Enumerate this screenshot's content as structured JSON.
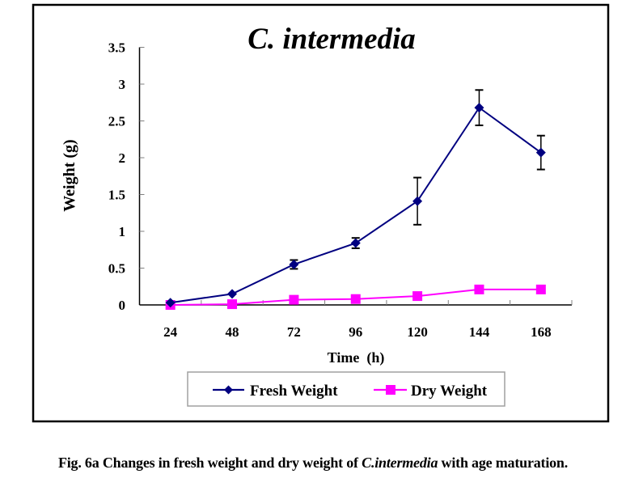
{
  "chart_data": {
    "type": "line",
    "title": "C. intermedia",
    "xlabel": "Time  (h)",
    "ylabel": "Weight (g)",
    "categories": [
      "24",
      "48",
      "72",
      "96",
      "120",
      "144",
      "168"
    ],
    "ylim": [
      0,
      3.5
    ],
    "yticks": [
      "0",
      "0.5",
      "1",
      "1.5",
      "2",
      "2.5",
      "3",
      "3.5"
    ],
    "ytick_values": [
      0,
      0.5,
      1,
      1.5,
      2,
      2.5,
      3,
      3.5
    ],
    "grid": false,
    "legend_position": "bottom",
    "series": [
      {
        "name": "Fresh Weight",
        "color": "#000080",
        "marker": "diamond",
        "values": [
          0.03,
          0.15,
          0.55,
          0.84,
          1.41,
          2.68,
          2.07
        ],
        "error": [
          0,
          0,
          0.06,
          0.07,
          0.32,
          0.24,
          0.23
        ]
      },
      {
        "name": "Dry Weight",
        "color": "#FF00FF",
        "marker": "square",
        "values": [
          0.0,
          0.01,
          0.07,
          0.08,
          0.12,
          0.21,
          0.21
        ],
        "error": [
          0,
          0,
          0,
          0,
          0,
          0,
          0
        ]
      }
    ]
  },
  "caption": {
    "prefix": "Fig. 6a Changes in fresh weight and dry weight of ",
    "italic": "C.intermedia",
    "suffix": " with age maturation."
  }
}
